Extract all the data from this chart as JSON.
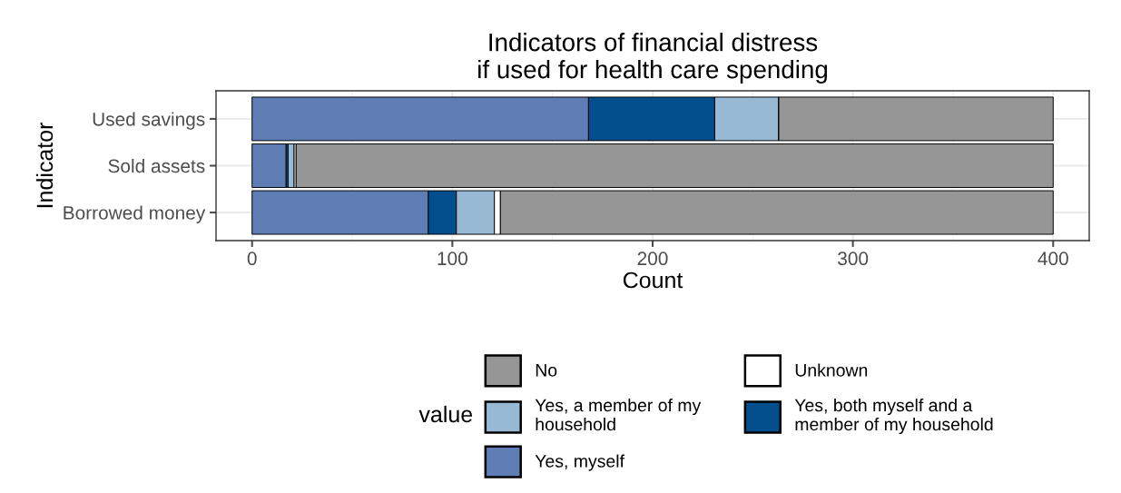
{
  "chart_data": {
    "type": "bar",
    "orientation": "horizontal",
    "stacked": true,
    "title": "Indicators of financial distress\nif used for health care spending",
    "xlabel": "Count",
    "ylabel": "Indicator",
    "legend_title": "value",
    "categories": [
      "Used savings",
      "Sold assets",
      "Borrowed money"
    ],
    "series": [
      {
        "name": "Yes, myself",
        "color": "#5f7db5",
        "values": [
          168,
          17,
          88
        ]
      },
      {
        "name": "Yes, both myself and a\nmember of my household",
        "color": "#034f8e",
        "values": [
          63,
          1,
          14
        ]
      },
      {
        "name": "Yes, a member of my\nhousehold",
        "color": "#97b9d4",
        "values": [
          32,
          3,
          19
        ]
      },
      {
        "name": "Unknown",
        "color": "#ffffff",
        "values": [
          0,
          1,
          3
        ]
      },
      {
        "name": "No",
        "color": "#969696",
        "values": [
          137,
          378,
          276
        ]
      }
    ],
    "xlim": [
      -18,
      418
    ],
    "xticks": [
      0,
      100,
      200,
      300,
      400
    ],
    "grid": true,
    "legend": "bottom"
  }
}
